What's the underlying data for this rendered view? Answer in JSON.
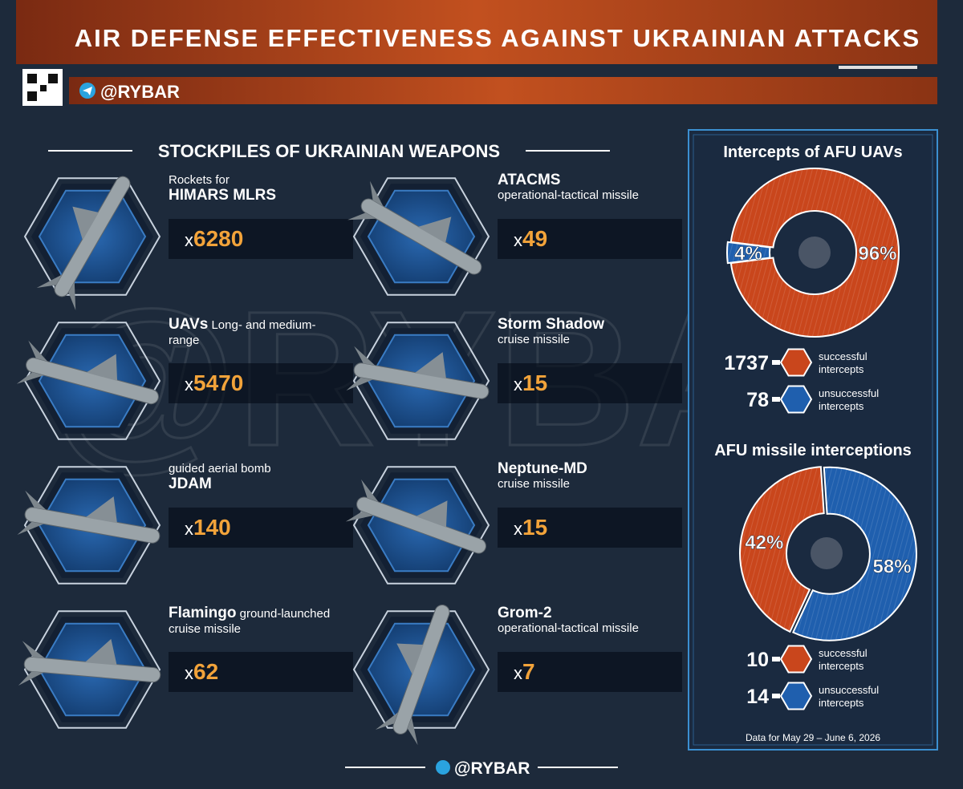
{
  "header": {
    "title": "AIR DEFENSE EFFECTIVENESS AGAINST UKRAINIAN ATTACKS",
    "handle": "@RYBAR"
  },
  "watermark": "@RYBAR",
  "stockpiles": {
    "title": "STOCKPILES OF UKRAINIAN WEAPONS",
    "items": [
      {
        "description": "Rockets for",
        "name": "HIMARS MLRS",
        "name_first": false,
        "prefix": "x",
        "count": 6280
      },
      {
        "name": "ATACMS",
        "description": "operational-tactical missile",
        "name_first": true,
        "prefix": "x",
        "count": 49
      },
      {
        "name": "UAVs",
        "description": "Long- and medium-range",
        "name_first": true,
        "inline": true,
        "prefix": "x",
        "count": 5470
      },
      {
        "name": "Storm Shadow",
        "description": "cruise missile",
        "name_first": true,
        "prefix": "x",
        "count": 15
      },
      {
        "description": "guided aerial bomb",
        "name": "JDAM",
        "name_first": false,
        "prefix": "x",
        "count": 140
      },
      {
        "name": "Neptune-MD",
        "description": "cruise missile",
        "name_first": true,
        "prefix": "x",
        "count": 15
      },
      {
        "name": "Flamingo",
        "description": "ground-launched cruise missile",
        "name_first": true,
        "inline": true,
        "prefix": "x",
        "count": 62
      },
      {
        "name": "Grom-2",
        "description": "operational-tactical missile",
        "name_first": true,
        "prefix": "x",
        "count": 7
      }
    ]
  },
  "chart_data": [
    {
      "type": "pie",
      "title": "Intercepts of AFU UAVs",
      "categories": [
        "successful intercepts",
        "unsuccessful intercepts"
      ],
      "values": [
        96,
        4
      ],
      "value_labels": [
        "96%",
        "4%"
      ],
      "counts": [
        1737,
        78
      ],
      "colors": [
        "#c9461c",
        "#1f5fae"
      ],
      "start_angle": -82.8
    },
    {
      "type": "pie",
      "title": "AFU missile interceptions",
      "categories": [
        "successful intercepts",
        "unsuccessful intercepts"
      ],
      "values": [
        42,
        58
      ],
      "value_labels": [
        "42%",
        "58%"
      ],
      "counts": [
        10,
        14
      ],
      "colors": [
        "#c9461c",
        "#1f5fae"
      ],
      "start_angle": 205
    }
  ],
  "footnote": "Data for May 29 – June 6, 2026",
  "footer": {
    "handle": "@RYBAR"
  }
}
